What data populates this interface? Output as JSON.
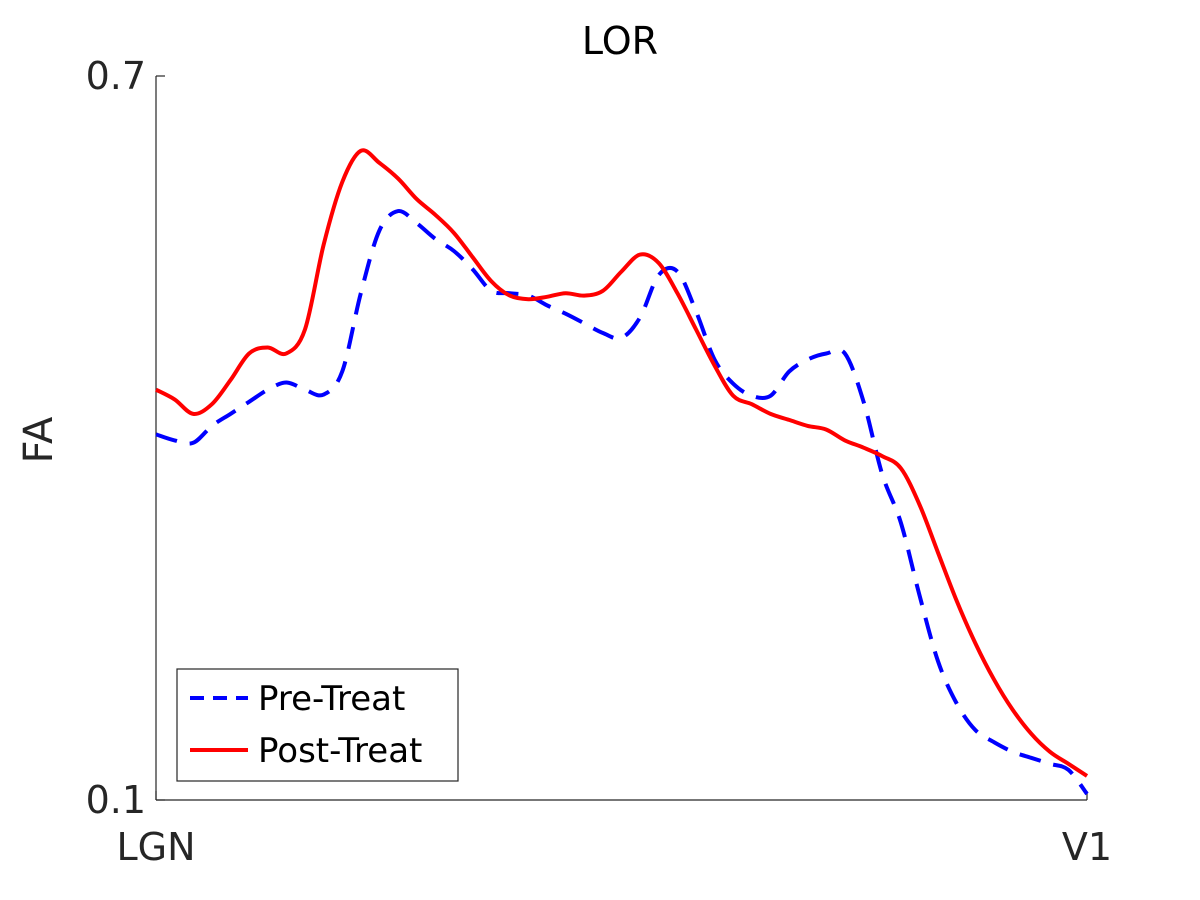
{
  "chart_data": {
    "type": "line",
    "title": "LOR",
    "xlabel": "",
    "ylabel": "FA",
    "xlim": [
      0,
      100
    ],
    "ylim": [
      0.1,
      0.7
    ],
    "x_ticks": [
      {
        "value": 0,
        "label": "LGN"
      },
      {
        "value": 100,
        "label": "V1"
      }
    ],
    "y_ticks": [
      {
        "value": 0.1,
        "label": "0.1"
      },
      {
        "value": 0.7,
        "label": "0.7"
      }
    ],
    "grid": false,
    "legend_position": "bottom-left",
    "series": [
      {
        "name": "Pre-Treat",
        "color": "#0000ff",
        "style": "dashed",
        "x": [
          0,
          2,
          4,
          6,
          8,
          10,
          12,
          14,
          16,
          18,
          20,
          22,
          24,
          26,
          28,
          30,
          32,
          34,
          36,
          38,
          40,
          42,
          44,
          46,
          48,
          50,
          52,
          54,
          56,
          58,
          60,
          62,
          64,
          66,
          68,
          70,
          72,
          74,
          76,
          78,
          80,
          82,
          84,
          86,
          88,
          90,
          92,
          94,
          96,
          98,
          100
        ],
        "values": [
          0.403,
          0.398,
          0.396,
          0.41,
          0.42,
          0.43,
          0.44,
          0.446,
          0.44,
          0.436,
          0.455,
          0.52,
          0.572,
          0.588,
          0.578,
          0.565,
          0.555,
          0.54,
          0.522,
          0.52,
          0.518,
          0.51,
          0.503,
          0.495,
          0.487,
          0.483,
          0.5,
          0.535,
          0.538,
          0.505,
          0.465,
          0.445,
          0.435,
          0.435,
          0.455,
          0.465,
          0.47,
          0.47,
          0.43,
          0.37,
          0.33,
          0.27,
          0.215,
          0.18,
          0.158,
          0.148,
          0.14,
          0.135,
          0.13,
          0.125,
          0.105
        ]
      },
      {
        "name": "Post-Treat",
        "color": "#ff0000",
        "style": "solid",
        "x": [
          0,
          2,
          4,
          6,
          8,
          10,
          12,
          14,
          16,
          18,
          20,
          22,
          24,
          26,
          28,
          30,
          32,
          34,
          36,
          38,
          40,
          42,
          44,
          46,
          48,
          50,
          52,
          54,
          56,
          58,
          60,
          62,
          64,
          66,
          68,
          70,
          72,
          74,
          76,
          78,
          80,
          82,
          84,
          86,
          88,
          90,
          92,
          94,
          96,
          98,
          100
        ],
        "values": [
          0.44,
          0.432,
          0.42,
          0.428,
          0.448,
          0.47,
          0.475,
          0.47,
          0.49,
          0.56,
          0.612,
          0.638,
          0.628,
          0.615,
          0.598,
          0.585,
          0.57,
          0.55,
          0.53,
          0.518,
          0.515,
          0.517,
          0.52,
          0.518,
          0.522,
          0.538,
          0.552,
          0.545,
          0.52,
          0.49,
          0.46,
          0.435,
          0.428,
          0.42,
          0.415,
          0.41,
          0.407,
          0.398,
          0.392,
          0.385,
          0.375,
          0.345,
          0.305,
          0.265,
          0.23,
          0.2,
          0.175,
          0.155,
          0.14,
          0.13,
          0.12
        ]
      }
    ]
  }
}
